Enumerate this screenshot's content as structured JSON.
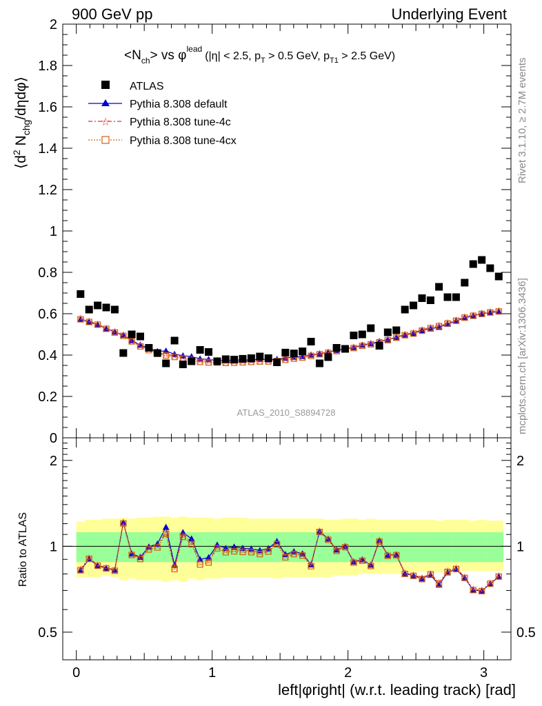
{
  "header": {
    "left": "900 GeV pp",
    "right": "Underlying Event"
  },
  "title": {
    "main_pre": "<N",
    "main_sub": "ch",
    "main_mid": "> vs φ",
    "main_sup": "lead",
    "cuts_1": "(|η| < 2.5, p",
    "cuts_sub1": "T",
    "cuts_2": " > 0.5 GeV, p",
    "cuts_sub2": "T1",
    "cuts_3": " > 2.5 GeV)"
  },
  "side_labels": {
    "rivet": "Rivet 3.1.10, ≥ 2.7M events",
    "mcplots": "mcplots.cern.ch [arXiv:1306.3436]"
  },
  "watermark": "ATLAS_2010_S8894728",
  "legend": {
    "atlas": "ATLAS",
    "default": "Pythia 8.308 default",
    "tune4c": "Pythia 8.308 tune-4c",
    "tune4cx": "Pythia 8.308 tune-4cx"
  },
  "colors": {
    "data": "#000000",
    "default": "#0000cc",
    "tune4c": "#e03030",
    "tune4cx": "#d06010",
    "band_inner": "#99ff99",
    "band_outer": "#ffff99"
  },
  "chart_data": {
    "type": "scatter",
    "xlabel": "left|φright| (w.r.t. leading track) [rad]",
    "ylabel_main": "⟨d² N_chg/dηdφ⟩",
    "ylabel_ratio": "Ratio to ATLAS",
    "xlim": [
      -0.1,
      3.2
    ],
    "ylim_main": [
      0,
      2
    ],
    "ylim_ratio": [
      0.4,
      2.4
    ],
    "main_ticks": [
      "0",
      "0.2",
      "0.4",
      "0.6",
      "0.8",
      "1",
      "1.2",
      "1.4",
      "1.6",
      "1.8",
      "2"
    ],
    "ratio_ticks": [
      "0.5",
      "1",
      "2"
    ],
    "x_ticks": [
      "0",
      "1",
      "2",
      "3"
    ],
    "x": [
      0.031,
      0.094,
      0.157,
      0.22,
      0.283,
      0.346,
      0.408,
      0.471,
      0.534,
      0.597,
      0.66,
      0.723,
      0.785,
      0.848,
      0.911,
      0.974,
      1.037,
      1.1,
      1.162,
      1.225,
      1.288,
      1.351,
      1.414,
      1.477,
      1.539,
      1.602,
      1.665,
      1.728,
      1.791,
      1.854,
      1.916,
      1.979,
      2.042,
      2.105,
      2.168,
      2.231,
      2.293,
      2.356,
      2.419,
      2.482,
      2.545,
      2.608,
      2.67,
      2.733,
      2.796,
      2.859,
      2.922,
      2.985,
      3.047,
      3.11
    ],
    "series": [
      {
        "name": "ATLAS",
        "values": [
          0.695,
          0.62,
          0.64,
          0.63,
          0.62,
          0.41,
          0.5,
          0.49,
          0.435,
          0.41,
          0.36,
          0.47,
          0.355,
          0.37,
          0.425,
          0.415,
          0.37,
          0.38,
          0.378,
          0.382,
          0.385,
          0.393,
          0.385,
          0.365,
          0.412,
          0.408,
          0.418,
          0.465,
          0.36,
          0.39,
          0.435,
          0.43,
          0.495,
          0.5,
          0.53,
          0.445,
          0.51,
          0.52,
          0.62,
          0.64,
          0.675,
          0.665,
          0.73,
          0.68,
          0.68,
          0.75,
          0.84,
          0.86,
          0.82,
          0.78
        ]
      },
      {
        "name": "Pythia 8.308 default",
        "values": [
          0.572,
          0.559,
          0.547,
          0.528,
          0.512,
          0.497,
          0.471,
          0.449,
          0.433,
          0.418,
          0.42,
          0.404,
          0.397,
          0.393,
          0.382,
          0.379,
          0.374,
          0.374,
          0.376,
          0.376,
          0.377,
          0.38,
          0.378,
          0.38,
          0.386,
          0.391,
          0.394,
          0.401,
          0.406,
          0.414,
          0.423,
          0.43,
          0.437,
          0.449,
          0.456,
          0.466,
          0.475,
          0.486,
          0.498,
          0.505,
          0.52,
          0.527,
          0.535,
          0.55,
          0.565,
          0.58,
          0.59,
          0.6,
          0.605,
          0.61
        ]
      },
      {
        "name": "Pythia 8.308 tune-4c",
        "values": [
          0.578,
          0.565,
          0.55,
          0.53,
          0.513,
          0.496,
          0.469,
          0.446,
          0.43,
          0.412,
          0.404,
          0.397,
          0.39,
          0.383,
          0.373,
          0.37,
          0.369,
          0.367,
          0.368,
          0.37,
          0.371,
          0.374,
          0.374,
          0.376,
          0.382,
          0.387,
          0.392,
          0.401,
          0.408,
          0.414,
          0.423,
          0.43,
          0.438,
          0.448,
          0.456,
          0.466,
          0.475,
          0.487,
          0.5,
          0.508,
          0.523,
          0.534,
          0.544,
          0.557,
          0.57,
          0.585,
          0.594,
          0.603,
          0.61,
          0.615
        ]
      },
      {
        "name": "Pythia 8.308 tune-4cx",
        "values": [
          0.573,
          0.56,
          0.547,
          0.527,
          0.509,
          0.493,
          0.466,
          0.442,
          0.424,
          0.406,
          0.398,
          0.391,
          0.383,
          0.376,
          0.367,
          0.364,
          0.364,
          0.362,
          0.363,
          0.365,
          0.367,
          0.369,
          0.369,
          0.371,
          0.377,
          0.383,
          0.388,
          0.396,
          0.404,
          0.411,
          0.419,
          0.427,
          0.434,
          0.445,
          0.452,
          0.462,
          0.472,
          0.484,
          0.496,
          0.504,
          0.518,
          0.53,
          0.54,
          0.553,
          0.566,
          0.581,
          0.59,
          0.599,
          0.606,
          0.611
        ]
      }
    ],
    "ratio": {
      "x_bands": [
        0.0,
        0.063,
        0.126,
        0.188,
        0.251,
        0.314,
        0.377,
        0.44,
        0.503,
        0.565,
        0.628,
        0.691,
        0.754,
        0.817,
        0.88,
        0.942,
        1.005,
        1.068,
        1.131,
        1.194,
        1.257,
        1.319,
        1.382,
        1.445,
        1.508,
        1.571,
        1.634,
        1.696,
        1.759,
        1.822,
        1.885,
        1.948,
        2.011,
        2.073,
        2.136,
        2.199,
        2.262,
        2.325,
        2.388,
        2.45,
        2.513,
        2.576,
        2.639,
        2.702,
        2.765,
        2.827,
        2.89,
        2.953,
        3.016,
        3.079,
        3.142
      ],
      "band_inner": [
        0.12,
        0.12,
        0.12,
        0.12,
        0.12,
        0.12,
        0.12,
        0.12,
        0.12,
        0.12,
        0.12,
        0.12,
        0.12,
        0.12,
        0.12,
        0.12,
        0.12,
        0.12,
        0.12,
        0.12,
        0.12,
        0.12,
        0.12,
        0.12,
        0.12,
        0.12,
        0.12,
        0.12,
        0.12,
        0.12,
        0.12,
        0.12,
        0.12,
        0.12,
        0.12,
        0.12,
        0.12,
        0.12,
        0.12,
        0.12,
        0.12,
        0.12,
        0.12,
        0.12,
        0.12,
        0.12,
        0.12,
        0.12,
        0.12,
        0.12
      ],
      "band_outer_lo": [
        0.22,
        0.22,
        0.22,
        0.21,
        0.22,
        0.24,
        0.23,
        0.24,
        0.24,
        0.24,
        0.25,
        0.24,
        0.25,
        0.23,
        0.24,
        0.23,
        0.23,
        0.22,
        0.22,
        0.22,
        0.22,
        0.22,
        0.22,
        0.23,
        0.22,
        0.22,
        0.22,
        0.22,
        0.22,
        0.22,
        0.21,
        0.21,
        0.21,
        0.2,
        0.2,
        0.2,
        0.2,
        0.2,
        0.19,
        0.19,
        0.19,
        0.19,
        0.19,
        0.19,
        0.19,
        0.18,
        0.18,
        0.18,
        0.18,
        0.18
      ],
      "band_outer_hi": [
        0.22,
        0.24,
        0.24,
        0.25,
        0.25,
        0.26,
        0.25,
        0.26,
        0.26,
        0.27,
        0.27,
        0.26,
        0.27,
        0.26,
        0.26,
        0.26,
        0.25,
        0.26,
        0.26,
        0.26,
        0.25,
        0.25,
        0.25,
        0.25,
        0.25,
        0.25,
        0.25,
        0.25,
        0.25,
        0.24,
        0.24,
        0.25,
        0.25,
        0.24,
        0.25,
        0.24,
        0.24,
        0.24,
        0.24,
        0.24,
        0.24,
        0.24,
        0.23,
        0.24,
        0.24,
        0.24,
        0.23,
        0.24,
        0.23,
        0.23
      ]
    }
  }
}
